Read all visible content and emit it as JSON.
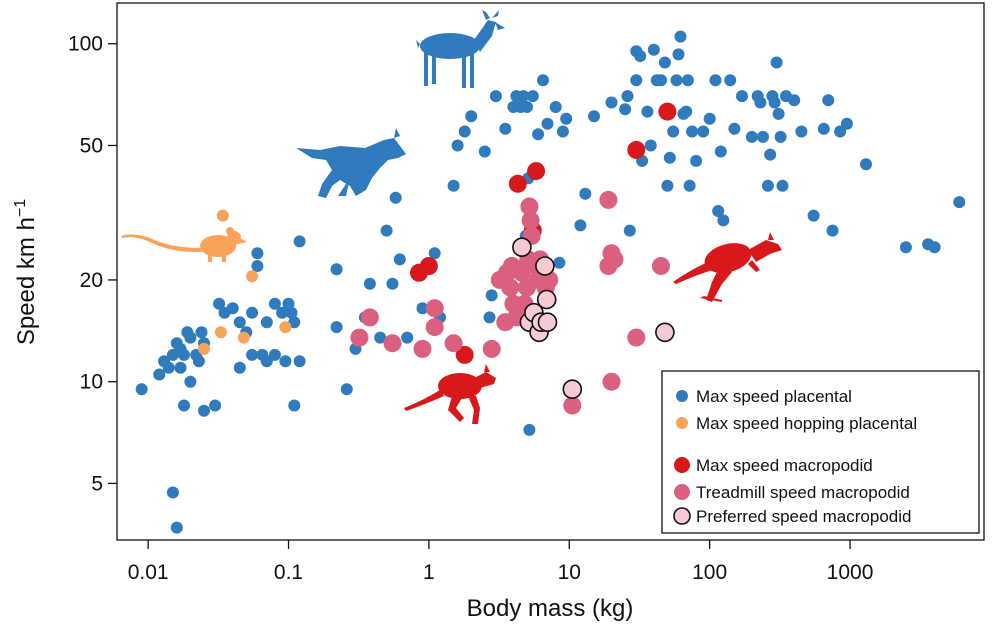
{
  "chart_data": {
    "type": "scatter",
    "xlabel": "Body mass (kg)",
    "ylabel": {
      "main": "Speed km h",
      "sup": "−1"
    },
    "x_scale": "log",
    "y_scale": "log",
    "xlim": [
      0.006,
      9000
    ],
    "ylim": [
      3.4,
      132
    ],
    "x_ticks": [
      {
        "value": 0.01,
        "label": "0.01"
      },
      {
        "value": 0.1,
        "label": "0.1"
      },
      {
        "value": 1,
        "label": "1"
      },
      {
        "value": 10,
        "label": "10"
      },
      {
        "value": 100,
        "label": "100"
      },
      {
        "value": 1000,
        "label": "1000"
      }
    ],
    "y_ticks": [
      {
        "value": 5,
        "label": "5"
      },
      {
        "value": 10,
        "label": "10"
      },
      {
        "value": 20,
        "label": "20"
      },
      {
        "value": 50,
        "label": "50"
      },
      {
        "value": 100,
        "label": "100"
      }
    ],
    "legend_position": "bottom-right",
    "silhouettes": [
      {
        "name": "deer-silhouette",
        "color": "#2f7bbd"
      },
      {
        "name": "wolf-silhouette",
        "color": "#2f7bbd"
      },
      {
        "name": "mouse-silhouette",
        "color": "#f7a45a"
      },
      {
        "name": "kangaroo-silhouette",
        "color": "#d7191c"
      },
      {
        "name": "wallaby-silhouette",
        "color": "#d7191c"
      }
    ],
    "series": [
      {
        "name": "Max speed placental",
        "color": "#2f7bbd",
        "stroke": "none",
        "size": 6,
        "points": [
          [
            0.009,
            9.5
          ],
          [
            0.012,
            10.5
          ],
          [
            0.013,
            11.5
          ],
          [
            0.014,
            11
          ],
          [
            0.015,
            12
          ],
          [
            0.016,
            13
          ],
          [
            0.017,
            12.5
          ],
          [
            0.017,
            11
          ],
          [
            0.018,
            12
          ],
          [
            0.019,
            14
          ],
          [
            0.02,
            13.5
          ],
          [
            0.02,
            10
          ],
          [
            0.022,
            12
          ],
          [
            0.023,
            11.5
          ],
          [
            0.024,
            14
          ],
          [
            0.025,
            13
          ],
          [
            0.018,
            8.5
          ],
          [
            0.025,
            8.2
          ],
          [
            0.03,
            8.5
          ],
          [
            0.015,
            4.7
          ],
          [
            0.016,
            3.7
          ],
          [
            0.032,
            17
          ],
          [
            0.035,
            16
          ],
          [
            0.04,
            16.5
          ],
          [
            0.045,
            15
          ],
          [
            0.05,
            14
          ],
          [
            0.055,
            16
          ],
          [
            0.06,
            22
          ],
          [
            0.06,
            24
          ],
          [
            0.07,
            15
          ],
          [
            0.08,
            17
          ],
          [
            0.09,
            16
          ],
          [
            0.1,
            17
          ],
          [
            0.105,
            16
          ],
          [
            0.11,
            15
          ],
          [
            0.08,
            12
          ],
          [
            0.095,
            11.5
          ],
          [
            0.12,
            11.5
          ],
          [
            0.055,
            12
          ],
          [
            0.045,
            11
          ],
          [
            0.065,
            12
          ],
          [
            0.07,
            11.5
          ],
          [
            0.11,
            8.5
          ],
          [
            0.12,
            26
          ],
          [
            0.22,
            14.5
          ],
          [
            0.22,
            21.5
          ],
          [
            0.26,
            9.5
          ],
          [
            0.3,
            12.5
          ],
          [
            0.35,
            15.5
          ],
          [
            0.38,
            19.5
          ],
          [
            0.45,
            13.5
          ],
          [
            0.5,
            28
          ],
          [
            0.55,
            19.5
          ],
          [
            0.58,
            35
          ],
          [
            0.62,
            23
          ],
          [
            0.7,
            13.5
          ],
          [
            0.9,
            16.5
          ],
          [
            1.0,
            22
          ],
          [
            1.1,
            24
          ],
          [
            1.2,
            15.5
          ],
          [
            1.5,
            38
          ],
          [
            1.6,
            50
          ],
          [
            1.8,
            55
          ],
          [
            2.0,
            61
          ],
          [
            2.5,
            48
          ],
          [
            2.7,
            15.5
          ],
          [
            2.8,
            18
          ],
          [
            3.0,
            70
          ],
          [
            3.5,
            56
          ],
          [
            4.0,
            65
          ],
          [
            4.2,
            70
          ],
          [
            4.5,
            65
          ],
          [
            4.7,
            70
          ],
          [
            4.9,
            27
          ],
          [
            5.0,
            65
          ],
          [
            5.1,
            40
          ],
          [
            5.2,
            7.2
          ],
          [
            5.5,
            70
          ],
          [
            6.0,
            54
          ],
          [
            6.5,
            78
          ],
          [
            7,
            58
          ],
          [
            8,
            65
          ],
          [
            8.5,
            22.5
          ],
          [
            9,
            55
          ],
          [
            9.5,
            60
          ],
          [
            12,
            29
          ],
          [
            13,
            36
          ],
          [
            15,
            61
          ],
          [
            20,
            67
          ],
          [
            25,
            64
          ],
          [
            26,
            70
          ],
          [
            27,
            28
          ],
          [
            30,
            78
          ],
          [
            30,
            95
          ],
          [
            32,
            92
          ],
          [
            33,
            45
          ],
          [
            36,
            63
          ],
          [
            38,
            50
          ],
          [
            40,
            96
          ],
          [
            42,
            78
          ],
          [
            45,
            78
          ],
          [
            48,
            88
          ],
          [
            50,
            38
          ],
          [
            52,
            46
          ],
          [
            55,
            55
          ],
          [
            58,
            78
          ],
          [
            60,
            93
          ],
          [
            62,
            105
          ],
          [
            65,
            62
          ],
          [
            68,
            63
          ],
          [
            70,
            78
          ],
          [
            72,
            38
          ],
          [
            75,
            55
          ],
          [
            80,
            45
          ],
          [
            90,
            55
          ],
          [
            100,
            60
          ],
          [
            110,
            78
          ],
          [
            115,
            32
          ],
          [
            120,
            48
          ],
          [
            125,
            30
          ],
          [
            140,
            78
          ],
          [
            150,
            56
          ],
          [
            170,
            70
          ],
          [
            200,
            53
          ],
          [
            220,
            70
          ],
          [
            230,
            67
          ],
          [
            240,
            53
          ],
          [
            260,
            38
          ],
          [
            270,
            47
          ],
          [
            280,
            70
          ],
          [
            290,
            67
          ],
          [
            300,
            88
          ],
          [
            310,
            62
          ],
          [
            320,
            53
          ],
          [
            330,
            38
          ],
          [
            350,
            70
          ],
          [
            400,
            68
          ],
          [
            450,
            55
          ],
          [
            550,
            31
          ],
          [
            650,
            56
          ],
          [
            700,
            68
          ],
          [
            750,
            28
          ],
          [
            850,
            55
          ],
          [
            950,
            58
          ],
          [
            1300,
            44
          ],
          [
            2500,
            25
          ],
          [
            3600,
            25.5
          ],
          [
            4000,
            25
          ],
          [
            6000,
            34
          ]
        ]
      },
      {
        "name": "Max speed hopping placental",
        "color": "#f7a45a",
        "stroke": "none",
        "size": 6,
        "points": [
          [
            0.025,
            12.5
          ],
          [
            0.033,
            14
          ],
          [
            0.034,
            31
          ],
          [
            0.048,
            13.5
          ],
          [
            0.055,
            20.5
          ],
          [
            0.095,
            14.5
          ]
        ]
      },
      {
        "name": "Max speed macropodid",
        "color": "#d7191c",
        "stroke": "none",
        "size": 9,
        "points": [
          [
            0.85,
            21
          ],
          [
            1.0,
            22
          ],
          [
            1.8,
            12
          ],
          [
            4.3,
            38.5
          ],
          [
            5.5,
            28
          ],
          [
            5.8,
            42
          ],
          [
            30,
            48.5
          ],
          [
            50,
            63
          ]
        ]
      },
      {
        "name": "Treadmill speed macropodid",
        "color": "#db5f7f",
        "stroke": "none",
        "size": 9,
        "points": [
          [
            0.32,
            13.5
          ],
          [
            0.38,
            15.5
          ],
          [
            0.55,
            13
          ],
          [
            0.9,
            12.5
          ],
          [
            1.1,
            16.5
          ],
          [
            1.1,
            14.5
          ],
          [
            1.5,
            13
          ],
          [
            2.8,
            12.5
          ],
          [
            3.2,
            20
          ],
          [
            3.6,
            21
          ],
          [
            3.8,
            19
          ],
          [
            3.9,
            22
          ],
          [
            4.0,
            17
          ],
          [
            4.2,
            15.5
          ],
          [
            4.3,
            16
          ],
          [
            4.6,
            21
          ],
          [
            4.8,
            17
          ],
          [
            5.0,
            19
          ],
          [
            5.1,
            23
          ],
          [
            5.2,
            33
          ],
          [
            5.3,
            30
          ],
          [
            5.4,
            27
          ],
          [
            5.6,
            16
          ],
          [
            5.8,
            22
          ],
          [
            6.0,
            20
          ],
          [
            6.2,
            23
          ],
          [
            6.5,
            21
          ],
          [
            6.8,
            19
          ],
          [
            7.2,
            20
          ],
          [
            19,
            34.5
          ],
          [
            19,
            22
          ],
          [
            20,
            24
          ],
          [
            21,
            23
          ],
          [
            30,
            13.5
          ],
          [
            45,
            22
          ],
          [
            20,
            10
          ],
          [
            10.5,
            8.5
          ],
          [
            3.5,
            15
          ]
        ]
      },
      {
        "name": "Preferred speed macropodid",
        "color": "#f5cad3",
        "stroke": "#111111",
        "size": 9,
        "points": [
          [
            4.6,
            25
          ],
          [
            5.2,
            15
          ],
          [
            5.6,
            16
          ],
          [
            6.1,
            14
          ],
          [
            6.3,
            15
          ],
          [
            6.7,
            22
          ],
          [
            6.9,
            17.5
          ],
          [
            7.0,
            15
          ],
          [
            10.5,
            9.5
          ],
          [
            48,
            14
          ]
        ]
      }
    ]
  }
}
